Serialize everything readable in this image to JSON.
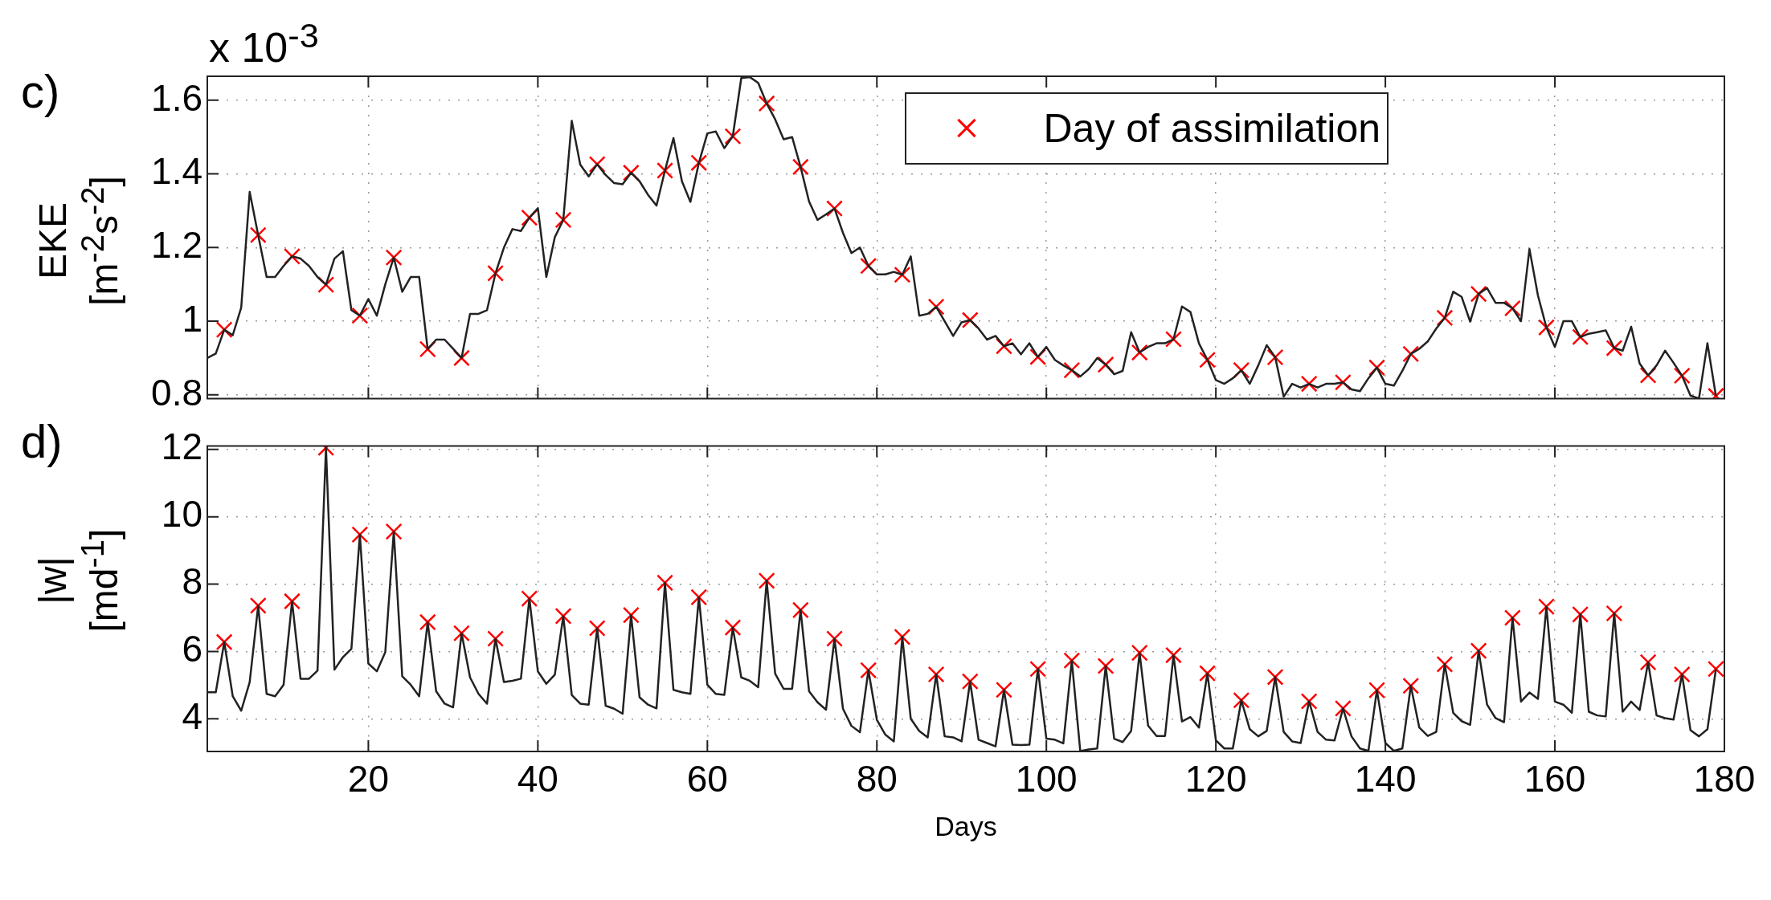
{
  "chart_data": [
    {
      "type": "line",
      "ylabel": "EKE\n[m$^{-2}$s$^{-2}$]",
      "annotations": [
        "c)",
        "x 10$^{-3}$"
      ],
      "xlim": [
        1,
        180
      ],
      "xticks": [
        20,
        40,
        60,
        80,
        100,
        120,
        140,
        160,
        180
      ],
      "ylim": [
        0.79,
        1.665
      ],
      "yticks": [
        0.8,
        1,
        1.2,
        1.4,
        1.6
      ],
      "grid": true,
      "tick_labels": "y",
      "legend": "top",
      "x": [
        1,
        2,
        3,
        4,
        5,
        6,
        7,
        8,
        9,
        10,
        11,
        12,
        13,
        14,
        15,
        16,
        17,
        18,
        19,
        20,
        21,
        22,
        23,
        24,
        25,
        26,
        27,
        28,
        29,
        30,
        31,
        32,
        33,
        34,
        35,
        36,
        37,
        38,
        39,
        40,
        41,
        42,
        43,
        44,
        45,
        46,
        47,
        48,
        49,
        50,
        51,
        52,
        53,
        54,
        55,
        56,
        57,
        58,
        59,
        60,
        61,
        62,
        63,
        64,
        65,
        66,
        67,
        68,
        69,
        70,
        71,
        72,
        73,
        74,
        75,
        76,
        77,
        78,
        79,
        80,
        81,
        82,
        83,
        84,
        85,
        86,
        87,
        88,
        89,
        90,
        91,
        92,
        93,
        94,
        95,
        96,
        97,
        98,
        99,
        100,
        101,
        102,
        103,
        104,
        105,
        106,
        107,
        108,
        109,
        110,
        111,
        112,
        113,
        114,
        115,
        116,
        117,
        118,
        119,
        120,
        121,
        122,
        123,
        124,
        125,
        126,
        127,
        128,
        129,
        130,
        131,
        132,
        133,
        134,
        135,
        136,
        137,
        138,
        139,
        140,
        141,
        142,
        143,
        144,
        145,
        146,
        147,
        148,
        149,
        150,
        151,
        152,
        153,
        154,
        155,
        156,
        157,
        158,
        159,
        160,
        161,
        162,
        163,
        164,
        165,
        166,
        167,
        168,
        169,
        170,
        171,
        172,
        173,
        174,
        175,
        176,
        177,
        178,
        179
      ],
      "series": [
        {
          "type": "line",
          "color": "#222222",
          "marker": "none",
          "line_style": "solid",
          "values": [
            0.9,
            0.912,
            0.977,
            0.962,
            1.037,
            1.351,
            1.234,
            1.12,
            1.12,
            1.15,
            1.176,
            1.17,
            1.15,
            1.12,
            1.099,
            1.17,
            1.19,
            1.03,
            1.015,
            1.06,
            1.015,
            1.1,
            1.173,
            1.08,
            1.12,
            1.12,
            0.924,
            0.95,
            0.95,
            0.925,
            0.9,
            1.02,
            1.02,
            1.03,
            1.13,
            1.2,
            1.25,
            1.245,
            1.281,
            1.307,
            1.12,
            1.228,
            1.275,
            1.544,
            1.425,
            1.393,
            1.426,
            1.397,
            1.375,
            1.372,
            1.403,
            1.38,
            1.343,
            1.314,
            1.409,
            1.497,
            1.38,
            1.324,
            1.43,
            1.51,
            1.515,
            1.47,
            1.502,
            1.66,
            1.663,
            1.647,
            1.591,
            1.548,
            1.494,
            1.5,
            1.419,
            1.325,
            1.275,
            1.29,
            1.306,
            1.24,
            1.185,
            1.2,
            1.15,
            1.127,
            1.127,
            1.134,
            1.126,
            1.176,
            1.015,
            1.02,
            1.039,
            1.0,
            0.96,
            0.997,
            1.003,
            0.98,
            0.95,
            0.96,
            0.932,
            0.94,
            0.91,
            0.94,
            0.903,
            0.93,
            0.895,
            0.88,
            0.867,
            0.85,
            0.87,
            0.9,
            0.882,
            0.856,
            0.865,
            0.97,
            0.915,
            0.93,
            0.94,
            0.94,
            0.951,
            1.04,
            1.025,
            0.94,
            0.895,
            0.84,
            0.83,
            0.845,
            0.867,
            0.83,
            0.88,
            0.935,
            0.902,
            0.795,
            0.83,
            0.82,
            0.83,
            0.82,
            0.83,
            0.83,
            0.834,
            0.815,
            0.81,
            0.845,
            0.874,
            0.83,
            0.825,
            0.865,
            0.911,
            0.925,
            0.945,
            0.98,
            1.009,
            1.08,
            1.066,
            0.999,
            1.074,
            1.09,
            1.05,
            1.05,
            1.035,
            1.0,
            1.196,
            1.07,
            0.983,
            0.93,
            1.0,
            1.0,
            0.957,
            0.966,
            0.97,
            0.975,
            0.927,
            0.92,
            0.985,
            0.885,
            0.853,
            0.88,
            0.92,
            0.887,
            0.852,
            0.798,
            0.79,
            0.94,
            0.797
          ]
        },
        {
          "type": "scatter",
          "name": "Day of assimilation",
          "color": "#ff0000",
          "marker": "cross",
          "x": [
            3,
            7,
            11,
            15,
            19,
            23,
            27,
            31,
            35,
            39,
            43,
            47,
            51,
            55,
            59,
            63,
            67,
            71,
            75,
            79,
            83,
            87,
            91,
            95,
            99,
            103,
            107,
            111,
            115,
            119,
            123,
            127,
            131,
            135,
            139,
            143,
            147,
            151,
            155,
            159,
            163,
            167,
            171,
            175,
            179
          ],
          "values": [
            0.977,
            1.234,
            1.176,
            1.099,
            1.015,
            1.173,
            0.924,
            0.9,
            1.13,
            1.281,
            1.275,
            1.426,
            1.403,
            1.409,
            1.43,
            1.502,
            1.591,
            1.419,
            1.306,
            1.15,
            1.126,
            1.039,
            1.003,
            0.932,
            0.903,
            0.867,
            0.882,
            0.915,
            0.951,
            0.895,
            0.867,
            0.902,
            0.83,
            0.834,
            0.874,
            0.911,
            1.009,
            1.074,
            1.035,
            0.983,
            0.957,
            0.927,
            0.853,
            0.852,
            0.797
          ]
        }
      ]
    },
    {
      "type": "line",
      "xlabel": "Days",
      "ylabel": "|w|\n[md$^{-1}$]",
      "annotations": [
        "d)"
      ],
      "xlim": [
        1,
        180
      ],
      "xticks": [
        20,
        40,
        60,
        80,
        100,
        120,
        140,
        160,
        180
      ],
      "ylim": [
        3.03,
        12.1
      ],
      "yticks": [
        4,
        6,
        8,
        10,
        12
      ],
      "grid": true,
      "x": [
        1,
        2,
        3,
        4,
        5,
        6,
        7,
        8,
        9,
        10,
        11,
        12,
        13,
        14,
        15,
        16,
        17,
        18,
        19,
        20,
        21,
        22,
        23,
        24,
        25,
        26,
        27,
        28,
        29,
        30,
        31,
        32,
        33,
        34,
        35,
        36,
        37,
        38,
        39,
        40,
        41,
        42,
        43,
        44,
        45,
        46,
        47,
        48,
        49,
        50,
        51,
        52,
        53,
        54,
        55,
        56,
        57,
        58,
        59,
        60,
        61,
        62,
        63,
        64,
        65,
        66,
        67,
        68,
        69,
        70,
        71,
        72,
        73,
        74,
        75,
        76,
        77,
        78,
        79,
        80,
        81,
        82,
        83,
        84,
        85,
        86,
        87,
        88,
        89,
        90,
        91,
        92,
        93,
        94,
        95,
        96,
        97,
        98,
        99,
        100,
        101,
        102,
        103,
        104,
        105,
        106,
        107,
        108,
        109,
        110,
        111,
        112,
        113,
        114,
        115,
        116,
        117,
        118,
        119,
        120,
        121,
        122,
        123,
        124,
        125,
        126,
        127,
        128,
        129,
        130,
        131,
        132,
        133,
        134,
        135,
        136,
        137,
        138,
        139,
        140,
        141,
        142,
        143,
        144,
        145,
        146,
        147,
        148,
        149,
        150,
        151,
        152,
        153,
        154,
        155,
        156,
        157,
        158,
        159,
        160,
        161,
        162,
        163,
        164,
        165,
        166,
        167,
        168,
        169,
        170,
        171,
        172,
        173,
        174,
        175,
        176,
        177,
        178,
        179
      ],
      "series": [
        {
          "type": "line",
          "color": "#222222",
          "marker": "none",
          "line_style": "solid",
          "values": [
            4.79,
            4.79,
            6.28,
            4.67,
            4.24,
            5.09,
            7.36,
            4.74,
            4.67,
            5.01,
            7.49,
            5.19,
            5.19,
            5.43,
            12.05,
            5.46,
            5.83,
            6.08,
            9.47,
            5.64,
            5.41,
            5.98,
            9.56,
            5.26,
            5.01,
            4.67,
            6.87,
            4.82,
            4.45,
            4.34,
            6.54,
            5.23,
            4.74,
            4.45,
            6.38,
            5.09,
            5.13,
            5.19,
            7.57,
            5.41,
            5.04,
            5.31,
            7.05,
            4.71,
            4.45,
            4.42,
            6.69,
            4.39,
            4.3,
            4.15,
            7.08,
            4.64,
            4.42,
            4.31,
            8.04,
            4.86,
            4.79,
            4.74,
            7.61,
            5.01,
            4.74,
            4.71,
            6.71,
            5.23,
            5.13,
            4.94,
            8.1,
            5.34,
            4.89,
            4.89,
            7.23,
            4.82,
            4.49,
            4.27,
            6.38,
            4.3,
            3.79,
            3.6,
            5.44,
            3.97,
            3.53,
            3.33,
            6.43,
            4.0,
            3.64,
            3.45,
            5.32,
            3.48,
            3.45,
            3.33,
            5.11,
            3.38,
            3.28,
            3.18,
            4.86,
            3.23,
            3.22,
            3.23,
            5.48,
            3.41,
            3.38,
            3.27,
            5.73,
            3.04,
            3.09,
            3.12,
            5.57,
            3.41,
            3.31,
            3.64,
            5.96,
            3.8,
            3.49,
            3.49,
            5.89,
            3.92,
            4.05,
            3.74,
            5.35,
            3.36,
            3.12,
            3.12,
            4.55,
            3.69,
            3.48,
            3.64,
            5.24,
            3.61,
            3.33,
            3.28,
            4.52,
            3.61,
            3.38,
            3.36,
            4.31,
            3.48,
            3.12,
            3.05,
            4.85,
            3.28,
            3.05,
            3.12,
            4.98,
            3.74,
            3.49,
            3.61,
            5.62,
            4.18,
            3.93,
            3.82,
            6.02,
            4.42,
            4.02,
            3.9,
            7.0,
            4.51,
            4.78,
            4.59,
            7.33,
            4.51,
            4.42,
            4.18,
            7.1,
            4.21,
            4.1,
            4.07,
            7.13,
            4.21,
            4.51,
            4.26,
            5.68,
            4.1,
            4.02,
            3.98,
            5.32,
            3.66,
            3.48,
            3.69,
            5.48
          ]
        },
        {
          "type": "scatter",
          "color": "#ff0000",
          "marker": "cross",
          "x": [
            3,
            7,
            11,
            15,
            19,
            23,
            27,
            31,
            35,
            39,
            43,
            47,
            51,
            55,
            59,
            63,
            67,
            71,
            75,
            79,
            83,
            87,
            91,
            95,
            99,
            103,
            107,
            111,
            115,
            119,
            123,
            127,
            131,
            135,
            139,
            143,
            147,
            151,
            155,
            159,
            163,
            167,
            171,
            175,
            179
          ],
          "values": [
            6.28,
            7.36,
            7.49,
            12.05,
            9.47,
            9.56,
            6.87,
            6.54,
            6.38,
            7.57,
            7.05,
            6.69,
            7.08,
            8.04,
            7.61,
            6.71,
            8.1,
            7.23,
            6.38,
            5.44,
            6.43,
            5.32,
            5.11,
            4.86,
            5.48,
            5.73,
            5.57,
            5.96,
            5.89,
            5.35,
            4.55,
            5.24,
            4.52,
            4.31,
            4.85,
            4.98,
            5.62,
            6.02,
            7.0,
            7.33,
            7.1,
            7.13,
            5.68,
            5.32,
            5.48
          ]
        }
      ]
    }
  ]
}
